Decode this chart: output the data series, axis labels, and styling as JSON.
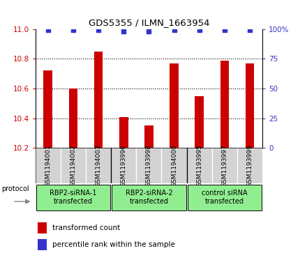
{
  "title": "GDS5355 / ILMN_1663954",
  "samples": [
    "GSM1194001",
    "GSM1194002",
    "GSM1194003",
    "GSM1193996",
    "GSM1193998",
    "GSM1194000",
    "GSM1193995",
    "GSM1193997",
    "GSM1193999"
  ],
  "bar_values": [
    10.72,
    10.6,
    10.85,
    10.41,
    10.35,
    10.77,
    10.55,
    10.79,
    10.77
  ],
  "percentile_values": [
    99,
    99,
    99,
    98,
    98,
    99,
    99,
    99,
    99
  ],
  "ylim": [
    10.2,
    11.0
  ],
  "yticks": [
    10.2,
    10.4,
    10.6,
    10.8,
    11.0
  ],
  "grid_yticks": [
    10.4,
    10.6,
    10.8
  ],
  "right_yticks": [
    0,
    25,
    50,
    75,
    100
  ],
  "right_ylim": [
    0,
    100
  ],
  "bar_color": "#cc0000",
  "dot_color": "#3333cc",
  "bg_color": "#ffffff",
  "cell_bg": "#d3d3d3",
  "green_color": "#90ee90",
  "groups": [
    {
      "label": "RBP2-siRNA-1\ntransfected",
      "start": 0,
      "end": 3
    },
    {
      "label": "RBP2-siRNA-2\ntransfected",
      "start": 3,
      "end": 6
    },
    {
      "label": "control siRNA\ntransfected",
      "start": 6,
      "end": 9
    }
  ],
  "legend_bar_label": "transformed count",
  "legend_dot_label": "percentile rank within the sample",
  "protocol_label": "protocol",
  "bar_width": 0.35
}
